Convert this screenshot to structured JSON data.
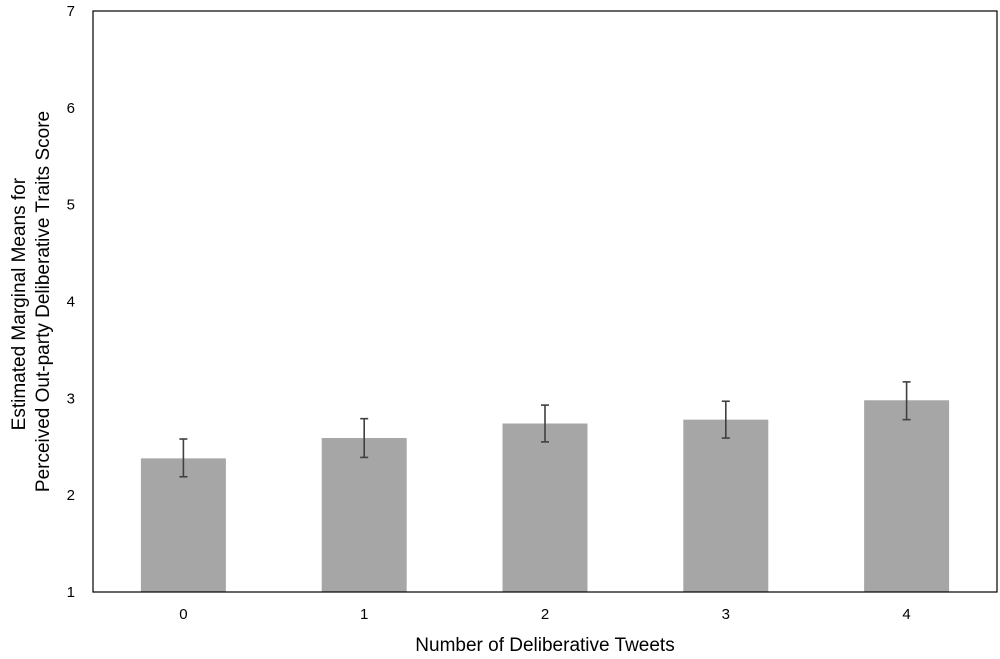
{
  "chart_data": {
    "type": "bar",
    "categories": [
      "0",
      "1",
      "2",
      "3",
      "4"
    ],
    "values": [
      2.38,
      2.59,
      2.74,
      2.78,
      2.98
    ],
    "error_low": [
      2.19,
      2.39,
      2.55,
      2.59,
      2.78
    ],
    "error_high": [
      2.58,
      2.79,
      2.93,
      2.97,
      3.17
    ],
    "title": "",
    "xlabel": "Number of Deliberative Tweets",
    "ylabel_lines": [
      "Estimated Marginal Means for",
      "Perceived Out-party Deliberative Traits Score"
    ],
    "ylim": [
      1,
      7
    ],
    "yticks": [
      1,
      2,
      3,
      4,
      5,
      6,
      7
    ],
    "grid": false,
    "colors": {
      "bar": "#a6a6a6",
      "error_bar": "#404040",
      "frame": "#000000"
    }
  }
}
